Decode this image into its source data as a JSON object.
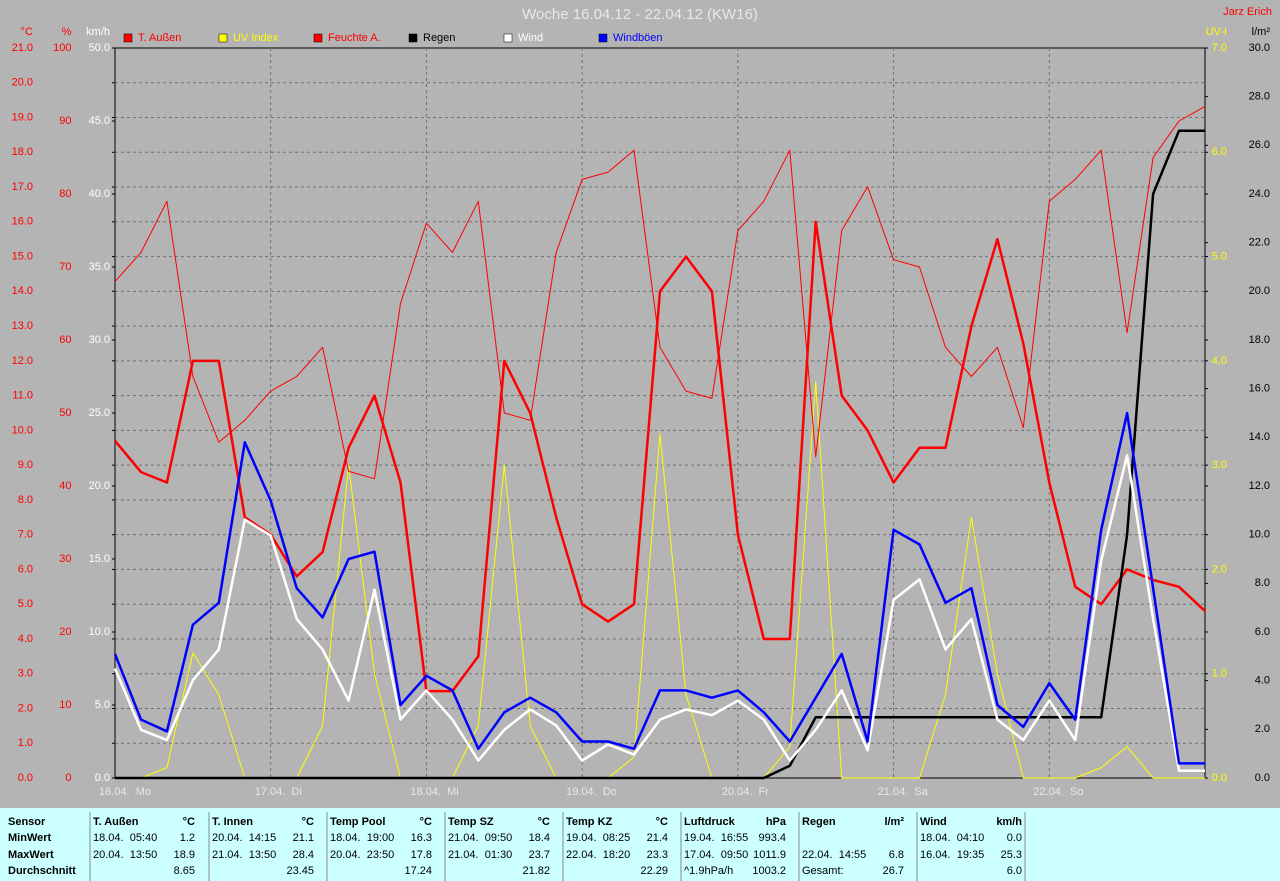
{
  "chart_data": {
    "type": "line",
    "title": "Woche 16.04.12 - 22.04.12 (KW16)",
    "author": "Jarz Erich",
    "legend": "top-left",
    "grid": true,
    "grid_axis": 0,
    "xlim": [
      0,
      168
    ],
    "xticks": [
      {
        "value": 0,
        "label": "16.04.  Mo"
      },
      {
        "value": 24,
        "label": "17.04.  Di"
      },
      {
        "value": 48,
        "label": "18.04.  Mi"
      },
      {
        "value": 72,
        "label": "19.04.  Do"
      },
      {
        "value": 96,
        "label": "20.04.  Fr"
      },
      {
        "value": 120,
        "label": "21.04.  Sa"
      },
      {
        "value": 144,
        "label": "22.04.  So"
      }
    ],
    "axes": [
      {
        "label": "°C",
        "color": "#ff0000",
        "side": "left",
        "lim": [
          0,
          21
        ],
        "ticks": [
          {
            "value": 0,
            "label": "0.0"
          },
          {
            "value": 1,
            "label": "1.0"
          },
          {
            "value": 2,
            "label": "2.0"
          },
          {
            "value": 3,
            "label": "3.0"
          },
          {
            "value": 4,
            "label": "4.0"
          },
          {
            "value": 5,
            "label": "5.0"
          },
          {
            "value": 6,
            "label": "6.0"
          },
          {
            "value": 7,
            "label": "7.0"
          },
          {
            "value": 8,
            "label": "8.0"
          },
          {
            "value": 9,
            "label": "9.0"
          },
          {
            "value": 10,
            "label": "10.0"
          },
          {
            "value": 11,
            "label": "11.0"
          },
          {
            "value": 12,
            "label": "12.0"
          },
          {
            "value": 13,
            "label": "13.0"
          },
          {
            "value": 14,
            "label": "14.0"
          },
          {
            "value": 15,
            "label": "15.0"
          },
          {
            "value": 16,
            "label": "16.0"
          },
          {
            "value": 17,
            "label": "17.0"
          },
          {
            "value": 18,
            "label": "18.0"
          },
          {
            "value": 19,
            "label": "19.0"
          },
          {
            "value": 20,
            "label": "20.0"
          },
          {
            "value": 21,
            "label": "21.0"
          }
        ]
      },
      {
        "label": "%",
        "color": "#ff0000",
        "side": "left",
        "lim": [
          0,
          100
        ],
        "ticks": [
          0,
          10,
          20,
          30,
          40,
          50,
          60,
          70,
          80,
          90,
          100
        ]
      },
      {
        "label": "km/h",
        "color": "#ffffff",
        "side": "left",
        "lim": [
          0,
          50
        ],
        "ticks": [
          {
            "value": 0,
            "label": "0.0"
          },
          {
            "value": 5,
            "label": "5.0"
          },
          {
            "value": 10,
            "label": "10.0"
          },
          {
            "value": 15,
            "label": "15.0"
          },
          {
            "value": 20,
            "label": "20.0"
          },
          {
            "value": 25,
            "label": "25.0"
          },
          {
            "value": 30,
            "label": "30.0"
          },
          {
            "value": 35,
            "label": "35.0"
          },
          {
            "value": 40,
            "label": "40.0"
          },
          {
            "value": 45,
            "label": "45.0"
          },
          {
            "value": 50,
            "label": "50.0"
          }
        ]
      },
      {
        "label": "UV-I",
        "color": "#ffff00",
        "side": "right",
        "lim": [
          0,
          7
        ],
        "ticks": [
          {
            "value": 0,
            "label": "0.0"
          },
          {
            "value": 1,
            "label": "1.0"
          },
          {
            "value": 2,
            "label": "2.0"
          },
          {
            "value": 3,
            "label": "3.0"
          },
          {
            "value": 4,
            "label": "4.0"
          },
          {
            "value": 5,
            "label": "5.0"
          },
          {
            "value": 6,
            "label": "6.0"
          },
          {
            "value": 7,
            "label": "7.0"
          }
        ]
      },
      {
        "label": "l/m²",
        "color": "#000000",
        "side": "right",
        "lim": [
          0,
          30
        ],
        "ticks": [
          {
            "value": 0,
            "label": "0.0"
          },
          {
            "value": 2,
            "label": "2.0"
          },
          {
            "value": 4,
            "label": "4.0"
          },
          {
            "value": 6,
            "label": "6.0"
          },
          {
            "value": 8,
            "label": "8.0"
          },
          {
            "value": 10,
            "label": "10.0"
          },
          {
            "value": 12,
            "label": "12.0"
          },
          {
            "value": 14,
            "label": "14.0"
          },
          {
            "value": 16,
            "label": "16.0"
          },
          {
            "value": 18,
            "label": "18.0"
          },
          {
            "value": 20,
            "label": "20.0"
          },
          {
            "value": 22,
            "label": "22.0"
          },
          {
            "value": 24,
            "label": "24.0"
          },
          {
            "value": 26,
            "label": "26.0"
          },
          {
            "value": 28,
            "label": "28.0"
          },
          {
            "value": 30,
            "label": "30.0"
          }
        ]
      }
    ],
    "x": [
      0,
      4,
      8,
      12,
      16,
      20,
      24,
      28,
      32,
      36,
      40,
      44,
      48,
      52,
      56,
      60,
      64,
      68,
      72,
      76,
      80,
      84,
      88,
      92,
      96,
      100,
      104,
      108,
      112,
      116,
      120,
      124,
      128,
      132,
      136,
      140,
      144,
      148,
      152,
      156,
      160,
      164,
      168
    ],
    "series": [
      {
        "name": "T. Außen",
        "color": "#ff0000",
        "axis": 0,
        "line": "thick",
        "values": [
          9.7,
          8.8,
          8.5,
          12.0,
          12.0,
          7.5,
          7.0,
          5.8,
          6.5,
          9.5,
          11.0,
          8.5,
          2.5,
          2.5,
          3.5,
          12.0,
          10.5,
          7.5,
          5.0,
          4.5,
          5.0,
          14.0,
          15.0,
          14.0,
          7.0,
          4.0,
          4.0,
          16.0,
          11.0,
          10.0,
          8.5,
          9.5,
          9.5,
          13.0,
          15.5,
          12.5,
          8.5,
          5.5,
          5.0,
          6.0,
          5.7,
          5.5,
          4.8
        ]
      },
      {
        "name": "UV Index",
        "color": "#ffff00",
        "axis": 3,
        "line": "thin",
        "values": [
          0,
          0,
          0.1,
          1.2,
          0.8,
          0,
          0,
          0,
          0.5,
          3.0,
          1.0,
          0,
          0,
          0,
          0.5,
          3.0,
          0.5,
          0,
          0,
          0,
          0.2,
          3.3,
          0.8,
          0,
          0,
          0,
          0.3,
          3.8,
          0,
          0,
          0,
          0,
          0.8,
          2.5,
          1.0,
          0,
          0,
          0,
          0.1,
          0.3,
          0,
          0,
          0
        ]
      },
      {
        "name": "Feuchte A.",
        "color": "#ff0000",
        "axis": 1,
        "line": "thin",
        "values": [
          68,
          72,
          79,
          55,
          46,
          49,
          53,
          55,
          59,
          42,
          41,
          65,
          76,
          72,
          79,
          50,
          49,
          72,
          82,
          83,
          86,
          59,
          53,
          52,
          75,
          79,
          86,
          44,
          75,
          81,
          71,
          70,
          59,
          55,
          59,
          48,
          79,
          82,
          86,
          61,
          85,
          90,
          92
        ]
      },
      {
        "name": "Regen",
        "color": "#000000",
        "axis": 4,
        "line": "thick",
        "values": [
          0,
          0,
          0,
          0,
          0,
          0,
          0,
          0,
          0,
          0,
          0,
          0,
          0,
          0,
          0,
          0,
          0,
          0,
          0,
          0,
          0,
          0,
          0,
          0,
          0,
          0,
          0.5,
          2.5,
          2.5,
          2.5,
          2.5,
          2.5,
          2.5,
          2.5,
          2.5,
          2.5,
          2.5,
          2.5,
          2.5,
          10,
          24,
          26.6,
          26.6
        ]
      },
      {
        "name": "Wind",
        "color": "#ffffff",
        "axis": 2,
        "line": "thick",
        "values": [
          7.5,
          3.3,
          2.6,
          6.7,
          8.8,
          17.7,
          16.6,
          10.9,
          8.8,
          5.3,
          12.9,
          4.0,
          6.0,
          4.0,
          1.2,
          3.3,
          4.7,
          3.6,
          1.2,
          2.3,
          1.6,
          4.0,
          4.7,
          4.3,
          5.3,
          4.0,
          1.2,
          3.3,
          6.0,
          1.9,
          12.2,
          13.6,
          8.8,
          10.9,
          4.0,
          2.6,
          5.3,
          2.6,
          14.9,
          22.1,
          10.9,
          0.5,
          0.5
        ]
      },
      {
        "name": "Windböen",
        "color": "#0000ff",
        "axis": 2,
        "line": "thick",
        "values": [
          8.5,
          4.0,
          3.2,
          10.5,
          12.0,
          23.0,
          19.0,
          13.0,
          11.0,
          15.0,
          15.5,
          5.0,
          7.0,
          6.0,
          2.0,
          4.5,
          5.5,
          4.5,
          2.5,
          2.5,
          2.0,
          6.0,
          6.0,
          5.5,
          6.0,
          4.5,
          2.5,
          5.5,
          8.5,
          2.5,
          17.0,
          16.0,
          12.0,
          13.0,
          5.0,
          3.5,
          6.5,
          4.0,
          17.0,
          25.0,
          13.0,
          1.0,
          1.0
        ]
      }
    ]
  },
  "table": {
    "header": "Sensor",
    "row_labels": [
      "MinWert",
      "MaxWert",
      "Durchschnitt"
    ],
    "columns": [
      {
        "name": "T. Außen",
        "unit": "°C",
        "min": [
          "18.04.  05:40",
          "1.2"
        ],
        "max": [
          "20.04.  13:50",
          "18.9"
        ],
        "avg": [
          "8.65"
        ]
      },
      {
        "name": "T. Innen",
        "unit": "°C",
        "min": [
          "20.04.  14:15",
          "21.1"
        ],
        "max": [
          "21.04.  13:50",
          "28.4"
        ],
        "avg": [
          "23.45"
        ]
      },
      {
        "name": "Temp Pool",
        "unit": "°C",
        "min": [
          "18.04.  19:00",
          "16.3"
        ],
        "max": [
          "20.04.  23:50",
          "17.8"
        ],
        "avg": [
          "17.24"
        ]
      },
      {
        "name": "Temp SZ",
        "unit": "°C",
        "min": [
          "21.04.  09:50",
          "18.4"
        ],
        "max": [
          "21.04.  01:30",
          "23.7"
        ],
        "avg": [
          "21.82"
        ]
      },
      {
        "name": "Temp KZ",
        "unit": "°C",
        "min": [
          "19.04.  08:25",
          "21.4"
        ],
        "max": [
          "22.04.  18:20",
          "23.3"
        ],
        "avg": [
          "22.29"
        ]
      },
      {
        "name": "Luftdruck",
        "unit": "hPa",
        "min": [
          "19.04.  16:55",
          "993.4"
        ],
        "max": [
          "17.04.  09:50",
          "1011.9"
        ],
        "avg": [
          "^1.9hPa/h",
          "1003.2"
        ]
      },
      {
        "name": "Regen",
        "unit": "l/m²",
        "max": [
          "22.04.  14:55",
          "6.8"
        ],
        "avg": [
          "Gesamt:",
          "26.7"
        ]
      },
      {
        "name": "Wind",
        "unit": "km/h",
        "min": [
          "18.04.  04:10",
          "0.0"
        ],
        "max": [
          "16.04.  19:35",
          "25.3"
        ],
        "avg": [
          "6.0"
        ]
      }
    ]
  }
}
